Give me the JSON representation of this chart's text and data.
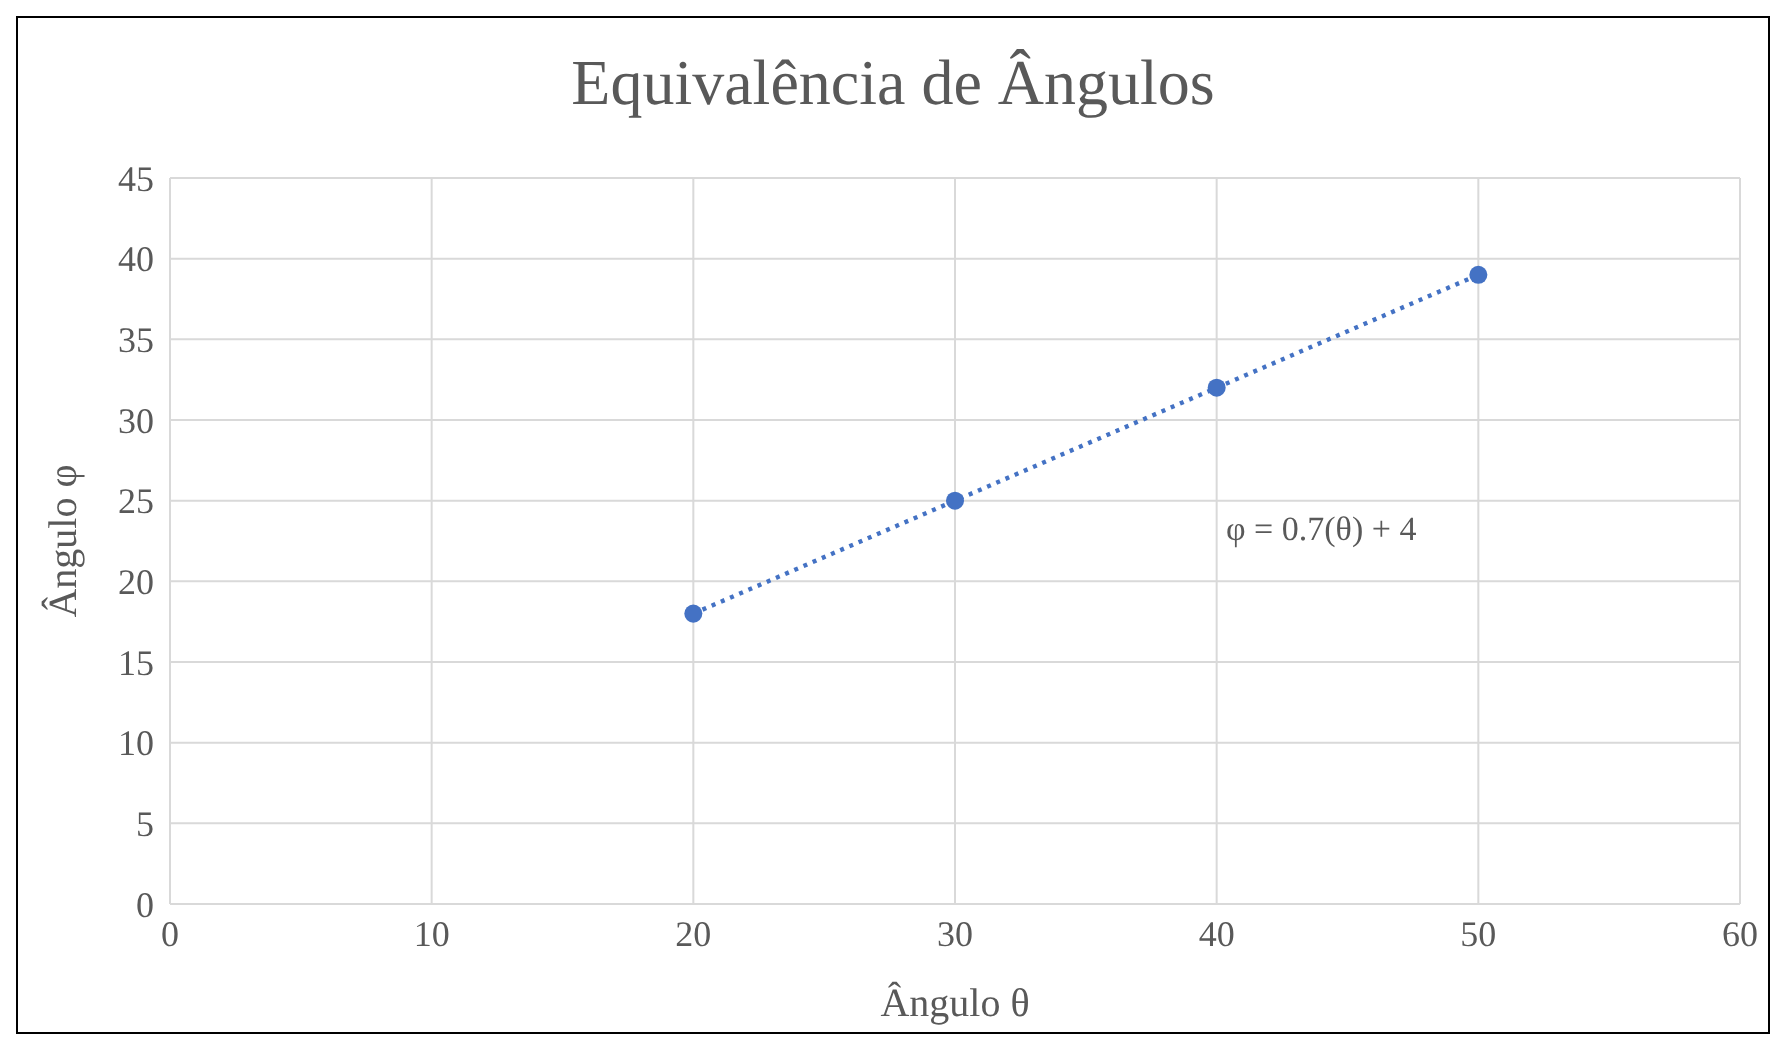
{
  "chart_data": {
    "type": "scatter",
    "title": "Equivalência de Ângulos",
    "xlabel": "Ângulo θ",
    "ylabel": "Ângulo φ",
    "xlim": [
      0,
      60
    ],
    "xticks": [
      0,
      10,
      20,
      30,
      40,
      50,
      60
    ],
    "ylim": [
      0,
      45
    ],
    "yticks": [
      0,
      5,
      10,
      15,
      20,
      25,
      30,
      35,
      40,
      45
    ],
    "grid": true,
    "marker": "circle",
    "series": [
      {
        "color": "#4472c4",
        "x": [
          20,
          30,
          40,
          50
        ],
        "values": [
          18,
          25,
          32,
          39
        ]
      },
      {
        "type": "line",
        "color": "#4472c4",
        "x": [
          20,
          50
        ],
        "values": [
          18,
          39
        ],
        "line_style": "dotted",
        "marker": "none"
      }
    ],
    "annotations": [
      "φ = 0.7(θ) + 4"
    ]
  }
}
